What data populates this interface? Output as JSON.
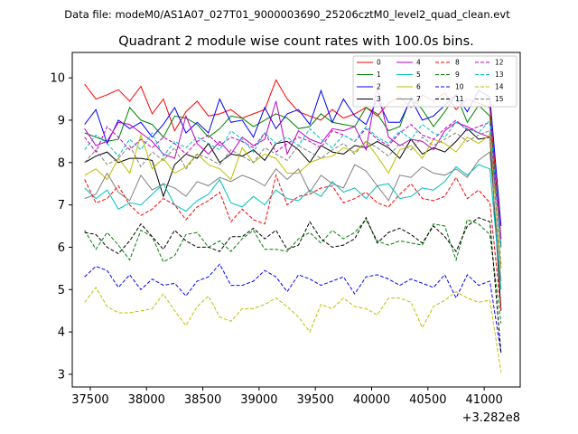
{
  "header": {
    "data_file": "Data file: modeM0/AS1A07_027T01_9000003690_25206cztM0_level2_quad_clean.evt"
  },
  "chart_data": {
    "type": "line",
    "title": "Quadrant 2 module wise count rates with 100.0s bins.",
    "xlabel": "",
    "ylabel": "",
    "x_offset_label": "+3.282e8",
    "xlim": [
      37340,
      41320
    ],
    "ylim": [
      2.7,
      10.6
    ],
    "xticks": [
      37500,
      38000,
      38500,
      39000,
      39500,
      40000,
      40500,
      41000
    ],
    "xtick_labels": [
      "37500",
      "38000",
      "38500",
      "39000",
      "39500",
      "40000",
      "40500",
      "41000"
    ],
    "yticks": [
      3,
      4,
      5,
      6,
      7,
      8,
      9,
      10
    ],
    "ytick_labels": [
      "3",
      "4",
      "5",
      "6",
      "7",
      "8",
      "9",
      "10"
    ],
    "grid": false,
    "legend_position": "top-right",
    "x": [
      37450,
      37550,
      37650,
      37750,
      37850,
      37950,
      38050,
      38150,
      38250,
      38350,
      38450,
      38550,
      38650,
      38750,
      38850,
      38950,
      39050,
      39150,
      39250,
      39350,
      39450,
      39550,
      39650,
      39750,
      39850,
      39950,
      40050,
      40150,
      40250,
      40350,
      40450,
      40550,
      40650,
      40750,
      40850,
      40950,
      41050,
      41150
    ],
    "series": [
      {
        "name": "0",
        "color": "#ff0000",
        "dash": "solid",
        "values": [
          9.85,
          9.5,
          9.6,
          9.72,
          9.45,
          9.8,
          9.15,
          9.5,
          8.75,
          9.2,
          9.45,
          9.1,
          9.15,
          9.25,
          9.05,
          9.15,
          9.25,
          9.95,
          9.5,
          9.2,
          9.1,
          9.0,
          9.25,
          9.05,
          9.15,
          9.3,
          9.1,
          9.4,
          9.55,
          9.3,
          9.6,
          9.45,
          9.65,
          9.25,
          9.5,
          9.4,
          9.3,
          6.2
        ]
      },
      {
        "name": "1",
        "color": "#008000",
        "dash": "solid",
        "values": [
          8.7,
          8.6,
          8.5,
          8.55,
          9.3,
          9.0,
          8.9,
          8.6,
          9.1,
          9.05,
          8.9,
          8.6,
          8.8,
          9.1,
          9.05,
          8.85,
          9.0,
          9.15,
          9.05,
          8.8,
          8.85,
          9.15,
          8.95,
          8.9,
          8.85,
          9.3,
          9.15,
          8.75,
          8.85,
          9.55,
          9.25,
          8.85,
          9.2,
          9.6,
          8.95,
          9.35,
          9.1,
          6.0
        ]
      },
      {
        "name": "2",
        "color": "#0000ff",
        "dash": "solid",
        "values": [
          8.9,
          9.25,
          8.45,
          9.0,
          8.8,
          8.95,
          8.6,
          8.9,
          9.3,
          8.7,
          8.95,
          8.7,
          9.5,
          8.95,
          9.0,
          8.6,
          9.3,
          8.8,
          9.15,
          9.25,
          8.9,
          9.7,
          8.95,
          9.5,
          9.1,
          8.9,
          9.5,
          8.95,
          8.95,
          9.5,
          9.0,
          9.1,
          9.35,
          9.6,
          9.2,
          9.7,
          9.55,
          6.5
        ]
      },
      {
        "name": "3",
        "color": "#000000",
        "dash": "solid",
        "values": [
          8.0,
          8.15,
          8.25,
          8.0,
          8.1,
          8.1,
          8.05,
          7.2,
          7.95,
          8.2,
          8.1,
          8.45,
          8.0,
          8.2,
          8.15,
          8.3,
          8.05,
          8.45,
          8.5,
          8.3,
          8.0,
          8.4,
          8.25,
          8.2,
          8.4,
          8.35,
          8.5,
          8.35,
          8.1,
          8.55,
          8.2,
          8.35,
          8.25,
          8.5,
          8.8,
          8.55,
          8.6,
          4.5
        ]
      },
      {
        "name": "4",
        "color": "#bf00bf",
        "dash": "solid",
        "values": [
          8.8,
          8.4,
          8.5,
          8.95,
          8.9,
          8.7,
          8.5,
          8.2,
          8.1,
          9.1,
          8.45,
          8.2,
          8.5,
          8.2,
          8.6,
          8.4,
          8.55,
          9.45,
          8.2,
          8.75,
          8.55,
          8.45,
          8.8,
          8.75,
          8.85,
          8.3,
          9.8,
          8.6,
          8.4,
          8.55,
          8.5,
          8.3,
          8.75,
          8.95,
          8.85,
          8.7,
          8.6,
          6.2
        ]
      },
      {
        "name": "5",
        "color": "#00bfbf",
        "dash": "solid",
        "values": [
          7.4,
          7.15,
          7.35,
          6.9,
          7.05,
          7.0,
          7.25,
          7.5,
          7.0,
          6.85,
          7.1,
          7.25,
          7.6,
          7.05,
          6.95,
          7.2,
          7.0,
          7.35,
          7.15,
          7.1,
          7.35,
          7.2,
          7.55,
          7.3,
          7.4,
          7.15,
          7.45,
          7.5,
          7.15,
          7.2,
          7.4,
          7.35,
          7.55,
          7.9,
          7.7,
          7.95,
          7.85,
          5.0
        ]
      },
      {
        "name": "6",
        "color": "#bfbf00",
        "dash": "solid",
        "values": [
          7.7,
          7.85,
          7.6,
          8.1,
          7.75,
          8.65,
          7.85,
          8.1,
          7.75,
          7.9,
          8.2,
          7.95,
          7.85,
          7.6,
          8.35,
          8.0,
          8.2,
          8.1,
          7.75,
          7.75,
          8.0,
          8.1,
          8.15,
          8.35,
          8.25,
          8.5,
          8.15,
          7.75,
          8.3,
          8.4,
          8.1,
          8.55,
          8.45,
          8.25,
          8.6,
          8.45,
          8.65,
          5.5
        ]
      },
      {
        "name": "7",
        "color": "#808080",
        "dash": "solid",
        "values": [
          7.15,
          7.25,
          7.75,
          7.3,
          7.1,
          7.7,
          7.35,
          7.5,
          7.4,
          7.2,
          7.55,
          7.45,
          7.65,
          7.55,
          7.7,
          7.6,
          7.45,
          7.85,
          7.6,
          7.85,
          7.3,
          7.7,
          7.5,
          7.4,
          7.95,
          7.8,
          7.45,
          7.1,
          7.7,
          7.65,
          7.9,
          7.75,
          7.7,
          7.85,
          7.65,
          8.05,
          8.25,
          5.2
        ]
      },
      {
        "name": "8",
        "color": "#ff0000",
        "dash": "dashed",
        "values": [
          7.6,
          7.05,
          7.15,
          7.45,
          7.0,
          6.75,
          6.9,
          7.15,
          7.0,
          6.65,
          6.95,
          7.1,
          7.3,
          6.6,
          6.9,
          6.65,
          6.55,
          7.7,
          7.0,
          7.2,
          7.25,
          7.4,
          7.45,
          7.05,
          7.15,
          7.3,
          7.05,
          6.95,
          7.25,
          7.5,
          7.15,
          7.1,
          7.2,
          7.65,
          7.15,
          7.35,
          7.05,
          4.5
        ]
      },
      {
        "name": "9",
        "color": "#008000",
        "dash": "dashed",
        "values": [
          6.4,
          5.95,
          6.35,
          6.05,
          5.7,
          6.4,
          6.25,
          5.65,
          5.8,
          6.3,
          6.35,
          6.0,
          6.15,
          5.9,
          6.2,
          6.4,
          5.95,
          5.95,
          5.9,
          6.2,
          6.35,
          6.1,
          6.4,
          6.2,
          6.35,
          6.65,
          6.15,
          6.05,
          6.15,
          6.1,
          6.05,
          6.55,
          6.5,
          5.7,
          6.65,
          6.55,
          6.3,
          4.2
        ]
      },
      {
        "name": "10",
        "color": "#0000ff",
        "dash": "dashed",
        "values": [
          5.3,
          5.55,
          5.45,
          5.05,
          5.35,
          5.0,
          5.25,
          5.1,
          5.15,
          4.85,
          5.2,
          5.3,
          5.6,
          5.1,
          5.1,
          5.2,
          5.45,
          5.3,
          4.95,
          5.35,
          5.25,
          5.1,
          5.2,
          5.3,
          4.9,
          5.3,
          5.35,
          5.25,
          5.1,
          5.25,
          5.15,
          5.05,
          5.35,
          4.8,
          5.35,
          5.1,
          5.2,
          3.5
        ]
      },
      {
        "name": "11",
        "color": "#000000",
        "dash": "dashed",
        "values": [
          6.35,
          6.3,
          6.0,
          5.85,
          6.15,
          6.55,
          6.25,
          5.95,
          6.4,
          6.15,
          6.0,
          6.0,
          5.9,
          6.25,
          6.25,
          6.45,
          6.2,
          6.4,
          5.95,
          6.05,
          6.6,
          6.2,
          6.0,
          6.05,
          6.2,
          6.7,
          6.1,
          6.35,
          6.45,
          6.3,
          6.1,
          6.5,
          6.25,
          5.9,
          6.5,
          6.7,
          6.6,
          3.5
        ]
      },
      {
        "name": "12",
        "color": "#bf00bf",
        "dash": "dashed",
        "values": [
          8.6,
          8.25,
          8.85,
          8.6,
          8.3,
          8.55,
          8.35,
          8.6,
          8.45,
          8.2,
          8.5,
          8.65,
          8.4,
          8.6,
          8.5,
          8.35,
          8.7,
          8.25,
          8.45,
          8.6,
          8.5,
          8.35,
          8.75,
          8.65,
          8.5,
          8.8,
          8.55,
          8.4,
          8.7,
          8.9,
          8.65,
          8.55,
          8.8,
          9.0,
          8.75,
          8.85,
          8.95,
          6.1
        ]
      },
      {
        "name": "13",
        "color": "#00bfbf",
        "dash": "dashed",
        "values": [
          8.3,
          8.65,
          8.45,
          8.15,
          8.55,
          8.3,
          8.7,
          8.15,
          8.5,
          8.35,
          8.6,
          8.45,
          8.3,
          8.75,
          8.55,
          8.25,
          8.7,
          8.45,
          8.6,
          8.4,
          8.8,
          8.55,
          8.35,
          8.65,
          8.5,
          8.85,
          8.6,
          8.45,
          8.75,
          8.55,
          8.9,
          8.7,
          8.6,
          8.95,
          8.8,
          8.7,
          9.0,
          6.0
        ]
      },
      {
        "name": "14",
        "color": "#bfbf00",
        "dash": "dashed",
        "values": [
          4.7,
          5.05,
          4.6,
          4.45,
          4.45,
          4.5,
          4.55,
          4.9,
          4.5,
          4.15,
          4.6,
          4.85,
          4.35,
          4.25,
          4.55,
          4.55,
          4.65,
          4.8,
          4.6,
          4.35,
          4.0,
          4.65,
          4.55,
          4.8,
          4.6,
          4.55,
          4.4,
          4.8,
          4.8,
          4.7,
          4.1,
          4.6,
          4.75,
          4.95,
          4.8,
          4.7,
          4.75,
          3.05
        ]
      },
      {
        "name": "15",
        "color": "#808080",
        "dash": "dashed",
        "values": [
          8.0,
          8.3,
          7.95,
          8.1,
          8.4,
          7.9,
          8.25,
          8.05,
          8.35,
          7.85,
          8.2,
          8.1,
          7.95,
          8.3,
          8.15,
          8.0,
          8.35,
          8.2,
          8.05,
          8.4,
          8.25,
          8.1,
          8.3,
          8.45,
          8.2,
          8.5,
          8.35,
          8.15,
          8.45,
          8.3,
          8.6,
          8.4,
          8.55,
          8.7,
          8.5,
          8.65,
          8.75,
          5.6
        ]
      }
    ]
  }
}
